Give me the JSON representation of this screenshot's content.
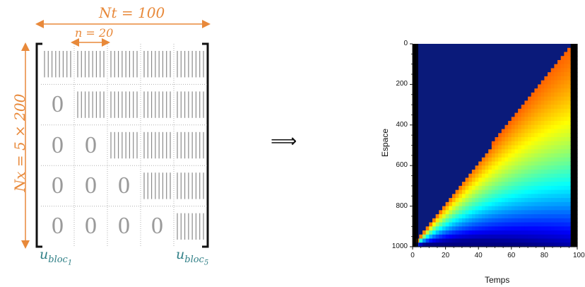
{
  "diagram": {
    "nt_label": "Nt = 100",
    "n_label": "n = 20",
    "nx_label": "Nx = 5 × 200",
    "zero_glyph": "0",
    "u_first": {
      "base": "u",
      "sub": "bloc",
      "subsub": "1"
    },
    "u_last": {
      "base": "u",
      "sub": "bloc",
      "subsub": "5"
    },
    "implies_symbol": "⟹",
    "matrix": {
      "rows": 5,
      "cols": 5,
      "zero_cells": [
        [
          1,
          0
        ],
        [
          2,
          0
        ],
        [
          2,
          1
        ],
        [
          3,
          0
        ],
        [
          3,
          1
        ],
        [
          3,
          2
        ],
        [
          4,
          0
        ],
        [
          4,
          1
        ],
        [
          4,
          2
        ],
        [
          4,
          3
        ]
      ]
    },
    "colors": {
      "accent_orange": "#E8893A",
      "accent_teal": "#2F7F86",
      "bracket": "#111111",
      "hatch": "#8a8a8a",
      "grid_dotted": "#b0b0b0"
    }
  },
  "chart_data": {
    "type": "heatmap",
    "title": "",
    "xlabel": "Temps",
    "ylabel": "Espace",
    "x_ticks": [
      0,
      20,
      40,
      60,
      80,
      100
    ],
    "y_ticks": [
      0,
      200,
      400,
      600,
      800,
      1000
    ],
    "xlim": [
      0,
      100
    ],
    "ylim": [
      1000,
      0
    ],
    "colormap": "jet",
    "background_color": "#0a1a7a"
  }
}
